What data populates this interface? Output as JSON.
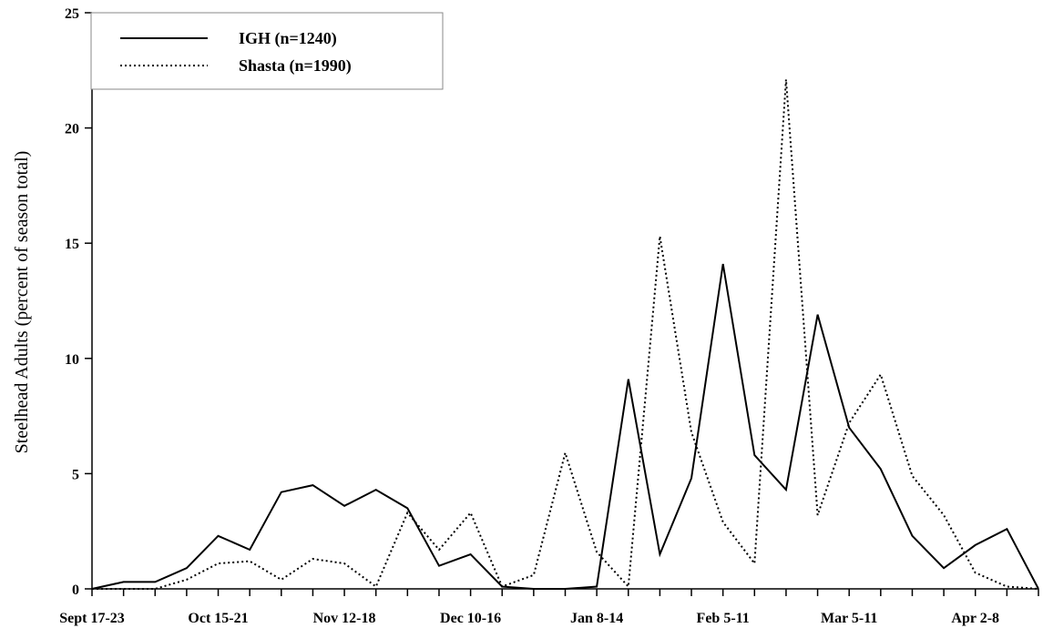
{
  "chart_data": {
    "type": "line",
    "title": "",
    "xlabel": "",
    "ylabel": "Steelhead Adults (percent of season total)",
    "ylim": [
      0,
      25
    ],
    "yticks": [
      0,
      5,
      10,
      15,
      20,
      25
    ],
    "grid": false,
    "legend_position": "top-left",
    "x_tick_labels": [
      {
        "index": 0,
        "label": "Sept 17-23"
      },
      {
        "index": 4,
        "label": "Oct 15-21"
      },
      {
        "index": 8,
        "label": "Nov 12-18"
      },
      {
        "index": 12,
        "label": "Dec 10-16"
      },
      {
        "index": 16,
        "label": "Jan 8-14"
      },
      {
        "index": 20,
        "label": "Feb 5-11"
      },
      {
        "index": 24,
        "label": "Mar 5-11"
      },
      {
        "index": 28,
        "label": "Apr 2-8"
      }
    ],
    "series": [
      {
        "name": "IGH (n=1240)",
        "style": "solid",
        "color": "#000000",
        "values": [
          0,
          0.3,
          0.3,
          0.9,
          2.3,
          1.7,
          4.2,
          4.5,
          3.6,
          4.3,
          3.5,
          1.0,
          1.5,
          0.1,
          0,
          0,
          0.1,
          9.1,
          1.5,
          4.8,
          14.1,
          5.8,
          4.3,
          11.9,
          7.0,
          5.2,
          2.3,
          0.9,
          1.9,
          2.6,
          0
        ]
      },
      {
        "name": "Shasta (n=1990)",
        "style": "dotted",
        "color": "#000000",
        "values": [
          0,
          0,
          0,
          0.4,
          1.1,
          1.2,
          0.4,
          1.3,
          1.1,
          0.1,
          3.3,
          1.7,
          3.3,
          0.1,
          0.6,
          5.9,
          1.6,
          0.1,
          15.3,
          6.8,
          2.9,
          1.1,
          22.1,
          3.2,
          7.2,
          9.3,
          4.9,
          3.2,
          0.7,
          0.1,
          0
        ]
      }
    ]
  }
}
